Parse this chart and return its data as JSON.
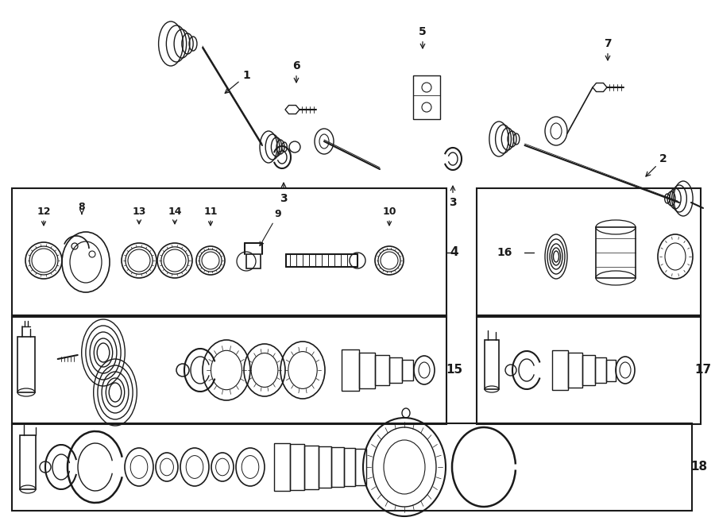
{
  "bg_color": "#ffffff",
  "line_color": "#1a1a1a",
  "figw": 9.0,
  "figh": 6.61,
  "dpi": 100,
  "boxes": {
    "b4_parts": [
      0.025,
      0.36,
      0.62,
      0.245
    ],
    "b15": [
      0.025,
      0.605,
      0.62,
      0.21
    ],
    "b16": [
      0.655,
      0.36,
      0.33,
      0.245
    ],
    "b17": [
      0.655,
      0.605,
      0.33,
      0.21
    ],
    "b18": [
      0.025,
      0.815,
      0.96,
      0.165
    ]
  }
}
